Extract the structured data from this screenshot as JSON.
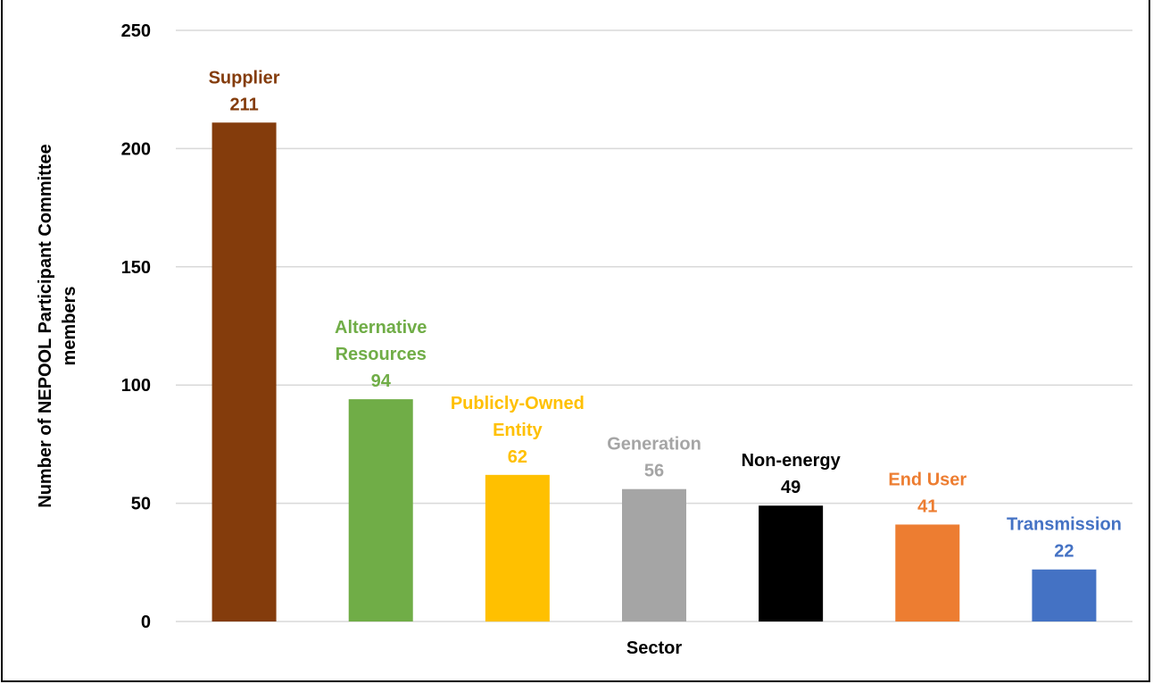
{
  "chart_data": {
    "type": "bar",
    "title": "",
    "xlabel": "Sector",
    "ylabel": "Number of NEPOOL Participant Committee members",
    "ylim": [
      0,
      250
    ],
    "yticks": [
      0,
      50,
      100,
      150,
      200,
      250
    ],
    "grid": true,
    "legend": "none",
    "categories": [
      "Supplier",
      "Alternative Resources",
      "Publicly-Owned Entity",
      "Generation",
      "Non-energy",
      "End User",
      "Transmission"
    ],
    "values": [
      211,
      94,
      62,
      56,
      49,
      41,
      22
    ],
    "colors": [
      "#843C0C",
      "#70AD47",
      "#FFC000",
      "#A5A5A5",
      "#000000",
      "#ED7D31",
      "#4472C4"
    ],
    "label_lines": [
      [
        "Supplier"
      ],
      [
        "Alternative",
        "Resources"
      ],
      [
        "Publicly-Owned",
        "Entity"
      ],
      [
        "Generation"
      ],
      [
        "Non-energy"
      ],
      [
        "End User"
      ],
      [
        "Transmission"
      ]
    ]
  }
}
